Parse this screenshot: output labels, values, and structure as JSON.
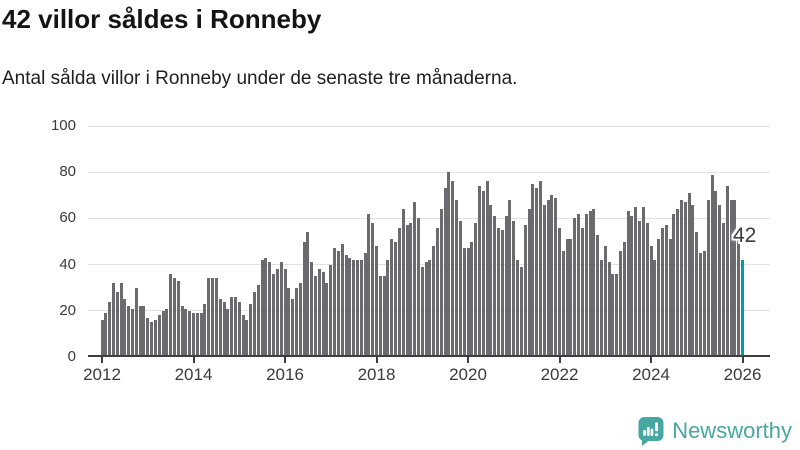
{
  "header": {
    "title": "42 villor såldes i Ronneby",
    "subtitle": "Antal sålda villor i Ronneby under de senaste tre månaderna."
  },
  "annotation": {
    "label": "42"
  },
  "branding": {
    "name": "Newsworthy",
    "color": "#47a7a2"
  },
  "chart_data": {
    "type": "bar",
    "title": "42 villor såldes i Ronneby",
    "subtitle": "Antal sålda villor i Ronneby under de senaste tre månaderna.",
    "series_name": "Antal sålda villor (rullande tre månader)",
    "frequency": "monthly",
    "x_start": "2012-01",
    "x_start_year": 2012,
    "ylim": [
      0,
      100
    ],
    "yticks": [
      0,
      20,
      40,
      60,
      80,
      100
    ],
    "xticks": [
      2012,
      2014,
      2016,
      2018,
      2020,
      2022,
      2024,
      2026
    ],
    "grid": "horizontal",
    "bar_color": "#6a6a6f",
    "gridline_color": "#e2e2e2",
    "axis_color": "#3c3c41",
    "values": [
      16,
      19,
      24,
      32,
      28,
      32,
      25,
      22,
      21,
      30,
      22,
      22,
      17,
      15,
      16,
      18,
      20,
      21,
      36,
      34,
      33,
      22,
      21,
      20,
      19,
      19,
      19,
      23,
      34,
      34,
      34,
      25,
      24,
      21,
      26,
      26,
      24,
      18,
      16,
      23,
      28,
      31,
      42,
      43,
      41,
      36,
      38,
      41,
      38,
      30,
      25,
      30,
      32,
      50,
      54,
      41,
      35,
      38,
      37,
      32,
      40,
      47,
      46,
      49,
      44,
      43,
      42,
      42,
      42,
      45,
      62,
      58,
      48,
      35,
      35,
      42,
      51,
      50,
      56,
      64,
      57,
      58,
      67,
      60,
      39,
      41,
      42,
      48,
      56,
      64,
      73,
      80,
      76,
      68,
      59,
      47,
      47,
      50,
      58,
      74,
      72,
      76,
      66,
      61,
      56,
      55,
      61,
      68,
      59,
      42,
      39,
      57,
      64,
      75,
      73,
      76,
      66,
      68,
      70,
      69,
      56,
      46,
      51,
      51,
      60,
      62,
      56,
      62,
      63,
      64,
      53,
      42,
      48,
      41,
      36,
      36,
      46,
      50,
      63,
      61,
      65,
      59,
      65,
      58,
      48,
      42,
      51,
      56,
      57,
      51,
      62,
      64,
      68,
      67,
      71,
      66,
      54,
      45,
      46,
      68,
      79,
      72,
      66,
      58,
      74,
      68,
      68,
      55,
      42
    ],
    "highlight": {
      "index": 168,
      "value": 42,
      "label": "42",
      "color": "#009ea0"
    }
  }
}
